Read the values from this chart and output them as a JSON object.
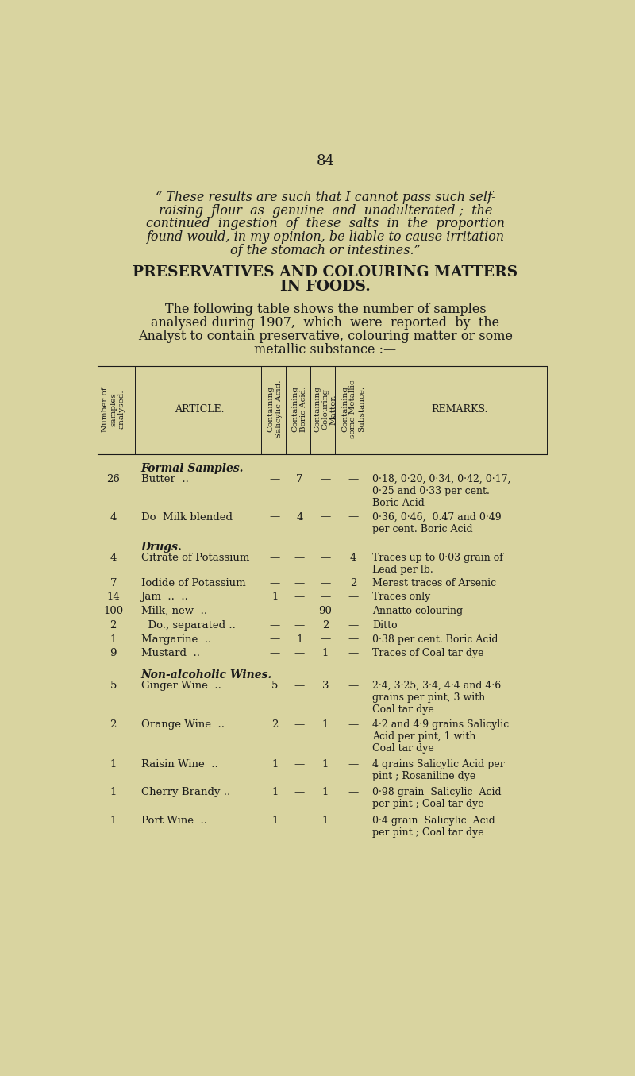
{
  "bg_color": "#d9d4a0",
  "page_number": "84",
  "quote_text": [
    "“ These results are such that I cannot pass such self-",
    "raising  flour  as  genuine  and  unadulterated ;  the",
    "continued  ingestion  of  these  salts  in  the  proportion",
    "found would, in my opinion, be liable to cause irritation",
    "of the stomach or intestines.”"
  ],
  "section_title_line1": "PRESERVATIVES AND COLOURING MATTERS",
  "section_title_line2": "IN FOODS.",
  "intro_text": [
    "The following table shows the number of samples",
    "analysed during 1907,  which  were  reported  by  the",
    "Analyst to contain preservative, colouring matter or some",
    "metallic substance :—"
  ],
  "section_formal": "Formal Samples.",
  "section_drugs": "Drugs.",
  "section_wines": "Non-alcoholic Wines.",
  "rows": [
    {
      "num": "26",
      "article": "Butter  ..",
      "sal": "—",
      "bor": "7",
      "col": "—",
      "met": "—",
      "remarks": "0·18, 0·20, 0·34, 0·42, 0·17,\n0·25 and 0·33 per cent.\nBoric Acid",
      "section": "formal"
    },
    {
      "num": "4",
      "article": "Do  Milk blended",
      "sal": "—",
      "bor": "4",
      "col": "—",
      "met": "—",
      "remarks": "0·36, 0·46,  0.47 and 0·49\nper cent. Boric Acid",
      "section": "formal"
    },
    {
      "num": "4",
      "article": "Citrate of Potassium",
      "sal": "—",
      "bor": "—",
      "col": "—",
      "met": "4",
      "remarks": "Traces up to 0·03 grain of\nLead per lb.",
      "section": "drugs"
    },
    {
      "num": "7",
      "article": "Iodide of Potassium",
      "sal": "—",
      "bor": "—",
      "col": "—",
      "met": "2",
      "remarks": "Merest traces of Arsenic",
      "section": "drugs"
    },
    {
      "num": "14",
      "article": "Jam  ..  ..",
      "sal": "1",
      "bor": "—",
      "col": "—",
      "met": "—",
      "remarks": "Traces only",
      "section": "drugs"
    },
    {
      "num": "100",
      "article": "Milk, new  ..",
      "sal": "—",
      "bor": "—",
      "col": "90",
      "met": "—",
      "remarks": "Annatto colouring",
      "section": "drugs"
    },
    {
      "num": "2",
      "article": "  Do., separated ..",
      "sal": "—",
      "bor": "—",
      "col": "2",
      "met": "—",
      "remarks": "Ditto",
      "section": "drugs"
    },
    {
      "num": "1",
      "article": "Margarine  ..",
      "sal": "—",
      "bor": "1",
      "col": "—",
      "met": "—",
      "remarks": "0·38 per cent. Boric Acid",
      "section": "drugs"
    },
    {
      "num": "9",
      "article": "Mustard  ..",
      "sal": "—",
      "bor": "—",
      "col": "1",
      "met": "—",
      "remarks": "Traces of Coal tar dye",
      "section": "drugs"
    },
    {
      "num": "5",
      "article": "Ginger Wine  ..",
      "sal": "5",
      "bor": "—",
      "col": "3",
      "met": "—",
      "remarks": "2·4, 3·25, 3·4, 4·4 and 4·6\ngrains per pint, 3 with\nCoal tar dye",
      "section": "wines"
    },
    {
      "num": "2",
      "article": "Orange Wine  ..",
      "sal": "2",
      "bor": "—",
      "col": "1",
      "met": "—",
      "remarks": "4·2 and 4·9 grains Salicylic\nAcid per pint, 1 with\nCoal tar dye",
      "section": "wines"
    },
    {
      "num": "1",
      "article": "Raisin Wine  ..",
      "sal": "1",
      "bor": "—",
      "col": "1",
      "met": "—",
      "remarks": "4 grains Salicylic Acid per\npint ; Rosaniline dye",
      "section": "wines"
    },
    {
      "num": "1",
      "article": "Cherry Brandy ..",
      "sal": "1",
      "bor": "—",
      "col": "1",
      "met": "—",
      "remarks": "0·98 grain  Salicylic  Acid\nper pint ; Coal tar dye",
      "section": "wines"
    },
    {
      "num": "1",
      "article": "Port Wine  ..",
      "sal": "1",
      "bor": "—",
      "col": "1",
      "met": "—",
      "remarks": "0·4 grain  Salicylic  Acid\nper pint ; Coal tar dye",
      "section": "wines"
    }
  ],
  "text_color": "#1a1a1a",
  "font_family": "serif"
}
